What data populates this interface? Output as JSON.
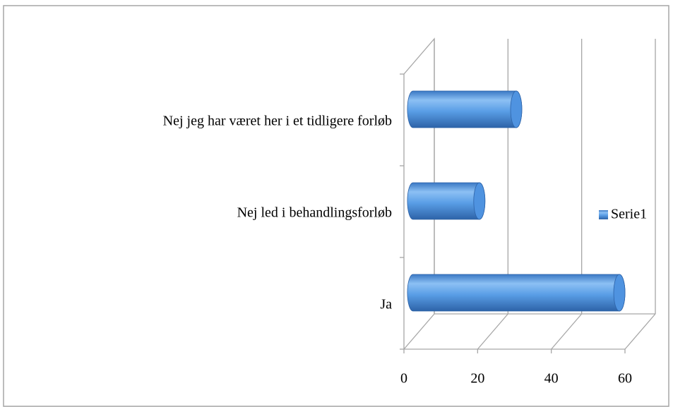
{
  "chart_data": {
    "type": "bar3d_horizontal",
    "categories": [
      "Ja",
      "Nej led i behandlingsforløb",
      "Nej jeg har været her i et tidligere forløb"
    ],
    "series": [
      {
        "name": "Serie1",
        "color": "#4f93e0",
        "values": [
          56,
          18,
          28
        ]
      }
    ],
    "xlim": [
      0,
      60
    ],
    "xticks": [
      0,
      20,
      40,
      60
    ],
    "grid": true,
    "legend": "right"
  }
}
